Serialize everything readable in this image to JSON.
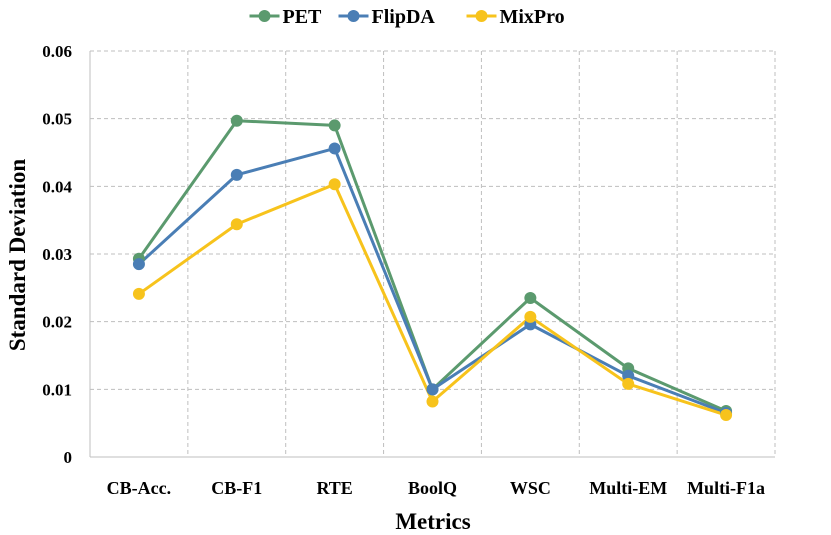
{
  "chart_data": {
    "type": "line",
    "title": "",
    "xlabel": "Metrics",
    "ylabel": "Standard Deviation",
    "categories": [
      "CB-Acc.",
      "CB-F1",
      "RTE",
      "BoolQ",
      "WSC",
      "Multi-EM",
      "Multi-F1a"
    ],
    "ylim": [
      0,
      0.06
    ],
    "yticks": [
      0,
      0.01,
      0.02,
      0.03,
      0.04,
      0.05,
      0.06
    ],
    "ytick_labels": [
      "0",
      "0.01",
      "0.02",
      "0.03",
      "0.04",
      "0.05",
      "0.06"
    ],
    "grid": true,
    "legend_position": "top-center",
    "series": [
      {
        "name": "PET",
        "color": "#5b9a6e",
        "values": [
          0.0293,
          0.0497,
          0.049,
          0.01,
          0.0235,
          0.0131,
          0.0068
        ]
      },
      {
        "name": "FlipDA",
        "color": "#4a7eb5",
        "values": [
          0.0285,
          0.0417,
          0.0456,
          0.01,
          0.0196,
          0.012,
          0.0065
        ]
      },
      {
        "name": "MixPro",
        "color": "#f7c31c",
        "values": [
          0.0241,
          0.0344,
          0.0403,
          0.0082,
          0.0207,
          0.0108,
          0.0062
        ]
      }
    ]
  }
}
